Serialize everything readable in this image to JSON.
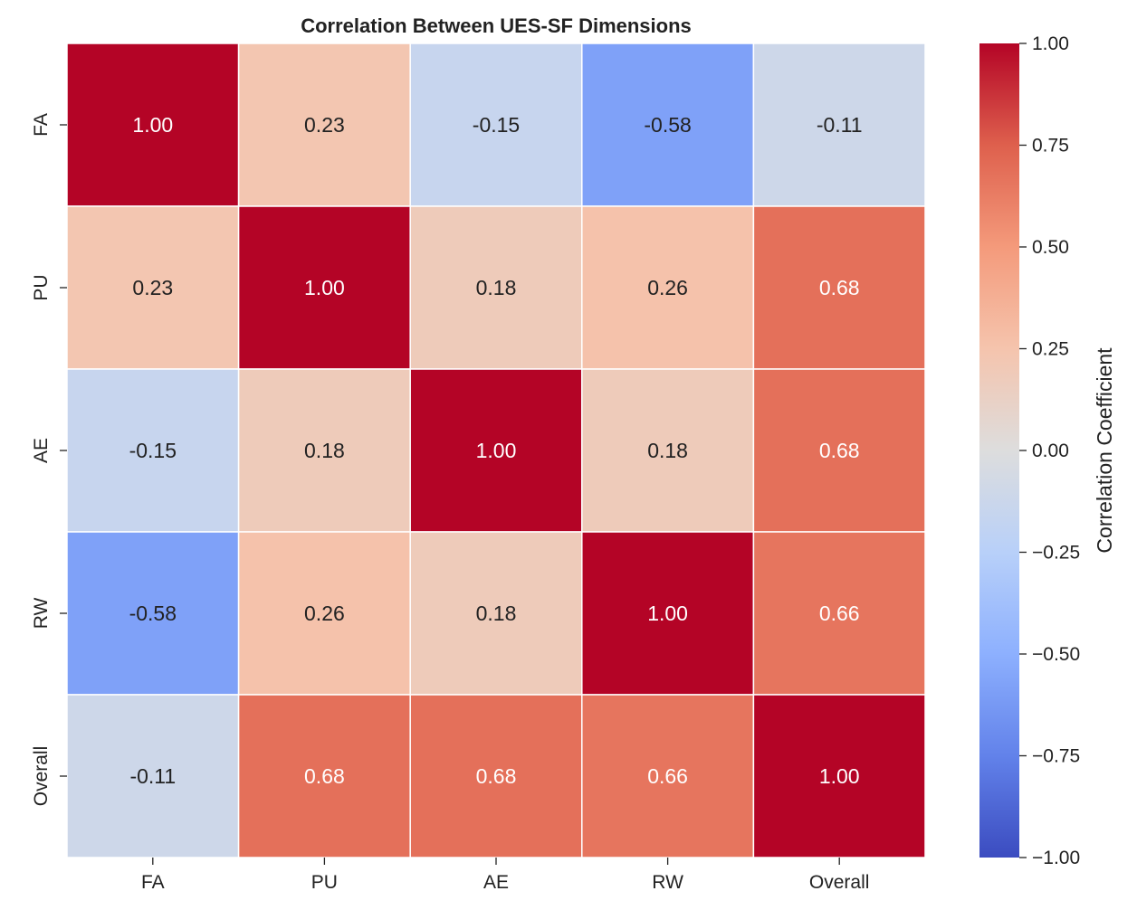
{
  "chart_data": {
    "type": "heatmap",
    "title": "Correlation Between UES-SF Dimensions",
    "x_labels": [
      "FA",
      "PU",
      "AE",
      "RW",
      "Overall"
    ],
    "y_labels": [
      "FA",
      "PU",
      "AE",
      "RW",
      "Overall"
    ],
    "values": [
      [
        1.0,
        0.23,
        -0.15,
        -0.58,
        -0.11
      ],
      [
        0.23,
        1.0,
        0.18,
        0.26,
        0.68
      ],
      [
        -0.15,
        0.18,
        1.0,
        0.18,
        0.68
      ],
      [
        -0.58,
        0.26,
        0.18,
        1.0,
        0.66
      ],
      [
        -0.11,
        0.68,
        0.68,
        0.66,
        1.0
      ]
    ],
    "value_format": "0.00",
    "colormap": "coolwarm",
    "vmin": -1.0,
    "vmax": 1.0,
    "colorbar": {
      "label": "Correlation Coefficient",
      "ticks": [
        1.0,
        0.75,
        0.5,
        0.25,
        0.0,
        -0.25,
        -0.5,
        -0.75,
        -1.0
      ],
      "tick_labels": [
        "1.00",
        "0.75",
        "0.50",
        "0.25",
        "0.00",
        "−0.25",
        "−0.50",
        "−0.75",
        "−1.00"
      ]
    },
    "colors": {
      "cold": "#3b4cc0",
      "neutral": "#dddddd",
      "warm": "#b40426",
      "grid_line": "#ffffff",
      "text_dark": "#222222",
      "text_light": "#ffffff"
    }
  }
}
